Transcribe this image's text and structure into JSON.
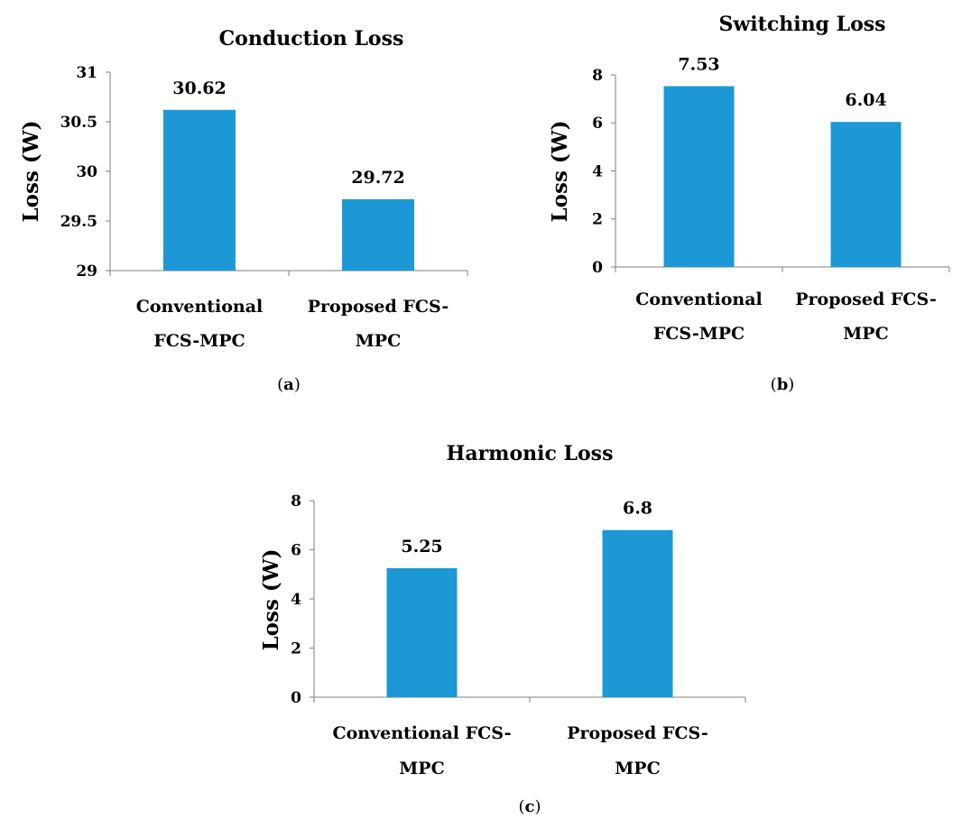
{
  "bar_color": "#1d98d6",
  "axis_color": "#7f7f7f",
  "chart_data": [
    {
      "type": "bar",
      "title": "Conduction Loss",
      "ylabel": "Loss (W)",
      "xlabel": "",
      "ylim": [
        29,
        31
      ],
      "y_ticks": [
        "29",
        "29.5",
        "30",
        "30.5",
        "31"
      ],
      "categories": [
        [
          "Conventional",
          "FCS-MPC"
        ],
        [
          "Proposed FCS-",
          "MPC"
        ]
      ],
      "values": [
        30.62,
        29.72
      ],
      "data_labels": [
        "30.62",
        "29.72"
      ],
      "panel_label": {
        "open": "(",
        "letter": "a",
        "close": ")"
      }
    },
    {
      "type": "bar",
      "title": "Switching Loss",
      "ylabel": "Loss (W)",
      "xlabel": "",
      "ylim": [
        0,
        8
      ],
      "y_ticks": [
        "0",
        "2",
        "4",
        "6",
        "8"
      ],
      "categories": [
        [
          "Conventional",
          "FCS-MPC"
        ],
        [
          "Proposed FCS-",
          "MPC"
        ]
      ],
      "values": [
        7.53,
        6.04
      ],
      "data_labels": [
        "7.53",
        "6.04"
      ],
      "panel_label": {
        "open": "(",
        "letter": "b",
        "close": ")"
      }
    },
    {
      "type": "bar",
      "title": "Harmonic Loss",
      "ylabel": "Loss (W)",
      "xlabel": "",
      "ylim": [
        0,
        8
      ],
      "y_ticks": [
        "0",
        "2",
        "4",
        "6",
        "8"
      ],
      "categories": [
        [
          "Conventional FCS-",
          "MPC"
        ],
        [
          "Proposed FCS-",
          "MPC"
        ]
      ],
      "values": [
        5.25,
        6.8
      ],
      "data_labels": [
        "5.25",
        "6.8"
      ],
      "panel_label": {
        "open": "(",
        "letter": "c",
        "close": ")"
      }
    }
  ]
}
